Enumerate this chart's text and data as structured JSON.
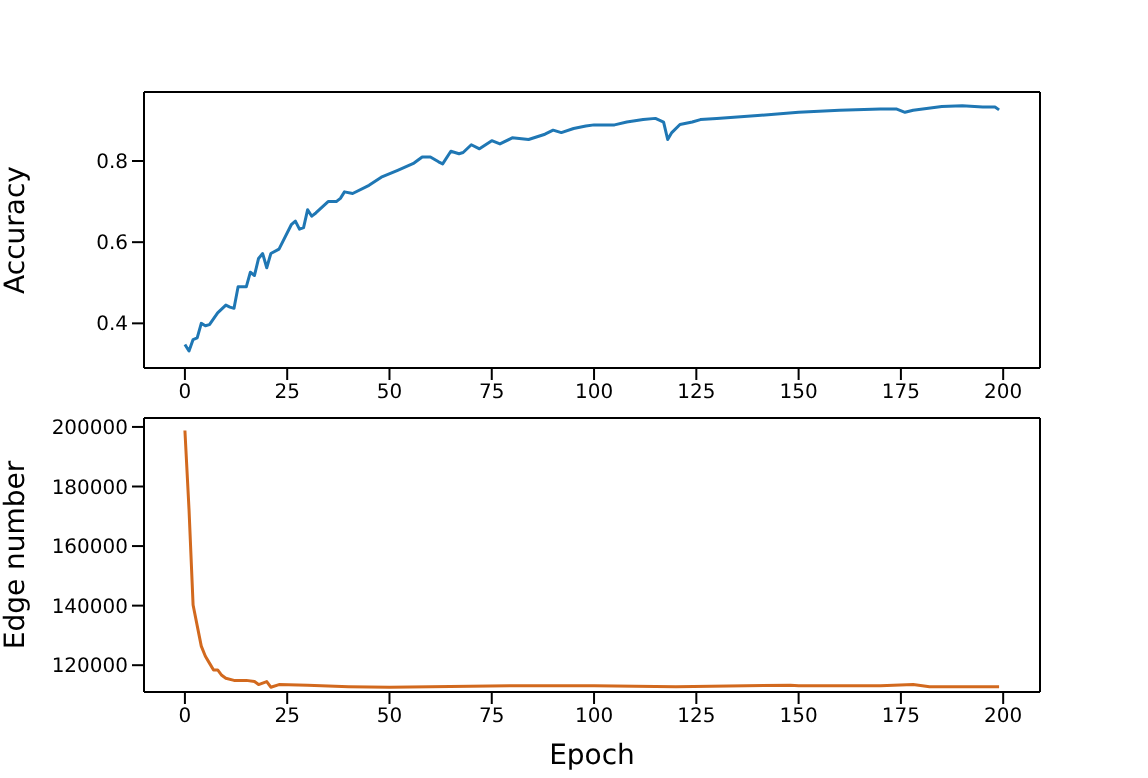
{
  "chart_data": [
    {
      "type": "line",
      "ylabel": "Accuracy",
      "xlim": [
        -10,
        209
      ],
      "xticks": [
        0,
        25,
        50,
        75,
        100,
        125,
        150,
        175,
        200
      ],
      "ylim": [
        0.29,
        0.97
      ],
      "yticks": [
        0.4,
        0.6,
        0.8
      ],
      "series": [
        {
          "color": "#1f77b4",
          "x": [
            0,
            1,
            2,
            3,
            4,
            5,
            6,
            8,
            10,
            11,
            12,
            13,
            15,
            16,
            17,
            18,
            19,
            20,
            21,
            23,
            26,
            27,
            28,
            29,
            30,
            31,
            32,
            35,
            37,
            38,
            39,
            41,
            45,
            48,
            52,
            56,
            58,
            60,
            62,
            63,
            65,
            67,
            68,
            70,
            72,
            75,
            77,
            80,
            84,
            88,
            90,
            92,
            95,
            98,
            100,
            105,
            108,
            112,
            115,
            117,
            118,
            119,
            121,
            124,
            126,
            130,
            140,
            150,
            160,
            170,
            174,
            176,
            178,
            185,
            190,
            195,
            198,
            199
          ],
          "values": [
            0.348,
            0.332,
            0.36,
            0.364,
            0.4,
            0.394,
            0.397,
            0.426,
            0.445,
            0.44,
            0.437,
            0.49,
            0.49,
            0.526,
            0.518,
            0.56,
            0.572,
            0.537,
            0.572,
            0.583,
            0.643,
            0.652,
            0.632,
            0.636,
            0.68,
            0.664,
            0.672,
            0.7,
            0.7,
            0.708,
            0.724,
            0.72,
            0.74,
            0.76,
            0.777,
            0.795,
            0.81,
            0.81,
            0.798,
            0.793,
            0.824,
            0.818,
            0.821,
            0.84,
            0.83,
            0.85,
            0.842,
            0.857,
            0.853,
            0.866,
            0.876,
            0.87,
            0.88,
            0.886,
            0.889,
            0.889,
            0.896,
            0.902,
            0.905,
            0.896,
            0.853,
            0.87,
            0.89,
            0.896,
            0.902,
            0.905,
            0.912,
            0.92,
            0.925,
            0.928,
            0.928,
            0.92,
            0.925,
            0.934,
            0.936,
            0.933,
            0.933,
            0.926
          ]
        }
      ]
    },
    {
      "type": "line",
      "xlabel": "Epoch",
      "ylabel": "Edge number",
      "xlim": [
        -10,
        209
      ],
      "xticks": [
        0,
        25,
        50,
        75,
        100,
        125,
        150,
        175,
        200
      ],
      "ylim": [
        111000,
        203000
      ],
      "yticks": [
        120000,
        140000,
        160000,
        180000,
        200000
      ],
      "series": [
        {
          "color": "#d2691e",
          "x": [
            0,
            1,
            2,
            3,
            4,
            5,
            6,
            7,
            8,
            9,
            10,
            12,
            15,
            17,
            18,
            20,
            21,
            23,
            30,
            40,
            50,
            60,
            80,
            100,
            120,
            148,
            150,
            170,
            178,
            182,
            199
          ],
          "values": [
            198800,
            172400,
            140200,
            133300,
            126400,
            123000,
            120700,
            118400,
            118400,
            116600,
            115600,
            114900,
            114900,
            114500,
            113500,
            114500,
            112600,
            113500,
            113300,
            112800,
            112600,
            112800,
            113100,
            113100,
            112800,
            113300,
            113100,
            113100,
            113500,
            112800,
            112800
          ]
        }
      ]
    }
  ]
}
